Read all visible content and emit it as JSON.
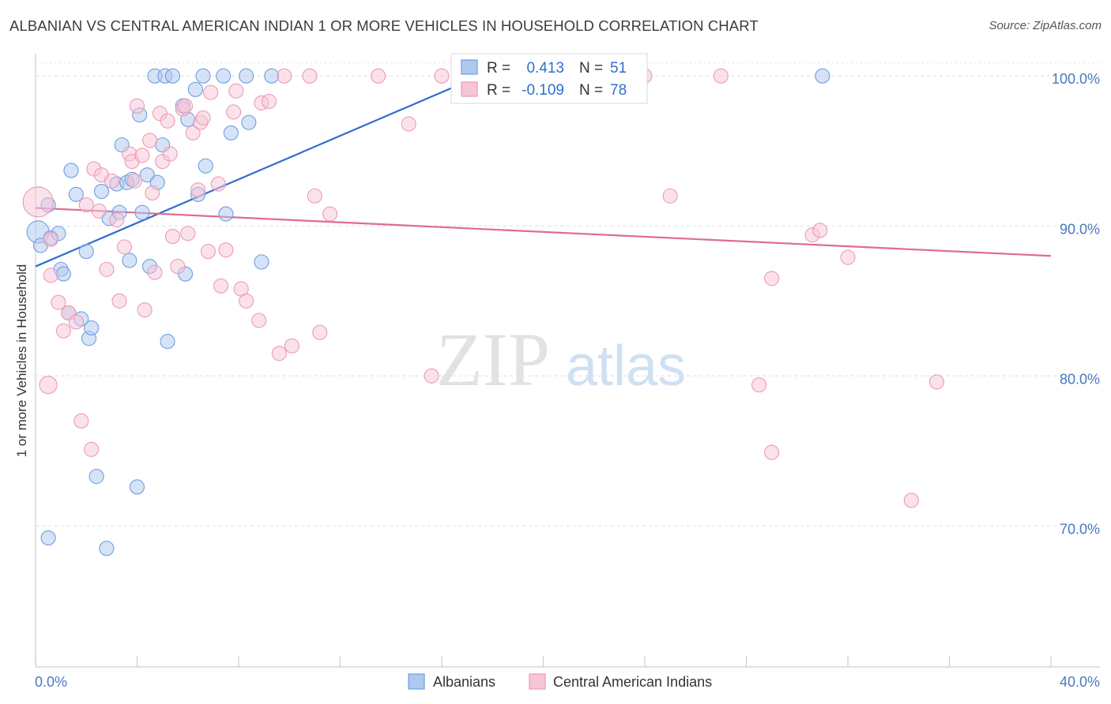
{
  "title": "ALBANIAN VS CENTRAL AMERICAN INDIAN 1 OR MORE VEHICLES IN HOUSEHOLD CORRELATION CHART",
  "source": "Source: ZipAtlas.com",
  "watermark": {
    "zip": "ZIP",
    "atlas": "atlas"
  },
  "chart_data": {
    "type": "scatter",
    "ylabel": "1 or more Vehicles in Household",
    "xlim": [
      0,
      40
    ],
    "ylim": [
      60.6,
      101.8
    ],
    "x_tick_labels": [
      {
        "value": 0,
        "label": "0.0%"
      },
      {
        "value": 40,
        "label": "40.0%"
      }
    ],
    "y_tick_labels": [
      {
        "value": 100,
        "label": "100.0%"
      },
      {
        "value": 90,
        "label": "90.0%"
      },
      {
        "value": 80,
        "label": "80.0%"
      },
      {
        "value": 70,
        "label": "70.0%"
      }
    ],
    "grid": "horizontal-dashed",
    "legend_position": "bottom-center",
    "stats_box": [
      {
        "r_label": "R =",
        "r_value": "0.413",
        "n_label": "N =",
        "n_value": "51"
      },
      {
        "r_label": "R =",
        "r_value": "-0.109",
        "n_label": "N =",
        "n_value": "78"
      }
    ],
    "series": [
      {
        "name": "Albanians",
        "color": "#6f9ee2",
        "fill": "#aec8ef",
        "line_color": "#2f6fd0",
        "trend": [
          [
            0.0,
            87.3
          ],
          [
            17.5,
            100.0
          ]
        ],
        "points": [
          [
            0.1,
            89.6,
            14
          ],
          [
            0.2,
            88.7,
            9
          ],
          [
            0.5,
            91.4,
            9
          ],
          [
            0.6,
            89.2,
            9
          ],
          [
            0.9,
            89.5,
            9
          ],
          [
            1.0,
            87.1,
            9
          ],
          [
            1.1,
            86.8,
            9
          ],
          [
            1.3,
            84.2,
            9
          ],
          [
            1.4,
            93.7,
            9
          ],
          [
            1.6,
            92.1,
            9
          ],
          [
            1.8,
            83.8,
            9
          ],
          [
            2.0,
            88.3,
            9
          ],
          [
            2.1,
            82.5,
            9
          ],
          [
            2.2,
            83.2,
            9
          ],
          [
            2.4,
            73.3,
            9
          ],
          [
            2.6,
            92.3,
            9
          ],
          [
            2.8,
            68.5,
            9
          ],
          [
            2.9,
            90.5,
            9
          ],
          [
            3.2,
            92.8,
            9
          ],
          [
            3.3,
            90.9,
            9
          ],
          [
            3.4,
            95.4,
            9
          ],
          [
            3.6,
            92.9,
            9
          ],
          [
            3.7,
            87.7,
            9
          ],
          [
            3.8,
            93.1,
            9
          ],
          [
            4.0,
            72.6,
            9
          ],
          [
            4.1,
            97.4,
            9
          ],
          [
            4.2,
            90.9,
            9
          ],
          [
            4.4,
            93.4,
            9
          ],
          [
            4.5,
            87.3,
            9
          ],
          [
            4.7,
            100.0,
            9
          ],
          [
            4.8,
            92.9,
            9
          ],
          [
            5.0,
            95.4,
            9
          ],
          [
            5.1,
            100.0,
            9
          ],
          [
            5.2,
            82.3,
            9
          ],
          [
            5.4,
            100.0,
            9
          ],
          [
            5.8,
            98.0,
            9
          ],
          [
            5.9,
            86.8,
            9
          ],
          [
            6.0,
            97.1,
            9
          ],
          [
            6.3,
            99.1,
            9
          ],
          [
            6.4,
            92.1,
            9
          ],
          [
            6.6,
            100.0,
            9
          ],
          [
            6.7,
            94.0,
            9
          ],
          [
            7.4,
            100.0,
            9
          ],
          [
            7.5,
            90.8,
            9
          ],
          [
            7.7,
            96.2,
            9
          ],
          [
            8.3,
            100.0,
            9
          ],
          [
            8.4,
            96.9,
            9
          ],
          [
            8.9,
            87.6,
            9
          ],
          [
            9.3,
            100.0,
            9
          ],
          [
            31.0,
            100.0,
            9
          ],
          [
            0.5,
            69.2,
            9
          ]
        ]
      },
      {
        "name": "Central American Indians",
        "color": "#ec9ab5",
        "fill": "#f7c5d5",
        "line_color": "#e06a95",
        "trend": [
          [
            0.0,
            91.2
          ],
          [
            40.0,
            88.0
          ]
        ],
        "points": [
          [
            0.1,
            91.6,
            19
          ],
          [
            0.6,
            89.1,
            9
          ],
          [
            0.6,
            86.7,
            9
          ],
          [
            0.9,
            84.9,
            9
          ],
          [
            1.1,
            83.0,
            9
          ],
          [
            1.3,
            84.2,
            9
          ],
          [
            0.5,
            79.4,
            11
          ],
          [
            1.6,
            83.6,
            9
          ],
          [
            1.8,
            77.0,
            9
          ],
          [
            2.0,
            91.4,
            9
          ],
          [
            2.2,
            75.1,
            9
          ],
          [
            2.3,
            93.8,
            9
          ],
          [
            2.5,
            91.0,
            9
          ],
          [
            2.6,
            93.4,
            9
          ],
          [
            2.8,
            87.1,
            9
          ],
          [
            3.0,
            93.0,
            9
          ],
          [
            3.2,
            90.4,
            9
          ],
          [
            3.3,
            85.0,
            9
          ],
          [
            3.5,
            88.6,
            9
          ],
          [
            3.7,
            94.8,
            9
          ],
          [
            3.8,
            94.3,
            9
          ],
          [
            3.9,
            93.0,
            9
          ],
          [
            4.0,
            98.0,
            9
          ],
          [
            4.2,
            94.7,
            9
          ],
          [
            4.3,
            84.4,
            9
          ],
          [
            4.5,
            95.7,
            9
          ],
          [
            4.6,
            92.2,
            9
          ],
          [
            4.7,
            86.9,
            9
          ],
          [
            4.9,
            97.5,
            9
          ],
          [
            5.0,
            94.3,
            9
          ],
          [
            5.2,
            97.0,
            9
          ],
          [
            5.3,
            94.8,
            9
          ],
          [
            5.4,
            89.3,
            9
          ],
          [
            5.6,
            87.3,
            9
          ],
          [
            5.8,
            97.8,
            9
          ],
          [
            5.9,
            98.0,
            9
          ],
          [
            6.0,
            89.5,
            9
          ],
          [
            6.2,
            96.2,
            9
          ],
          [
            6.4,
            92.4,
            9
          ],
          [
            6.5,
            96.9,
            9
          ],
          [
            6.6,
            97.2,
            9
          ],
          [
            6.8,
            88.3,
            9
          ],
          [
            6.9,
            98.9,
            9
          ],
          [
            7.2,
            92.8,
            9
          ],
          [
            7.3,
            86.0,
            9
          ],
          [
            7.5,
            88.4,
            9
          ],
          [
            7.8,
            97.6,
            9
          ],
          [
            7.9,
            99.0,
            9
          ],
          [
            8.1,
            85.8,
            9
          ],
          [
            8.3,
            85.0,
            9
          ],
          [
            8.8,
            83.7,
            9
          ],
          [
            8.9,
            98.2,
            9
          ],
          [
            9.2,
            98.3,
            9
          ],
          [
            9.6,
            81.5,
            9
          ],
          [
            9.8,
            100.0,
            9
          ],
          [
            10.1,
            82.0,
            9
          ],
          [
            10.8,
            100.0,
            9
          ],
          [
            11.0,
            92.0,
            9
          ],
          [
            11.2,
            82.9,
            9
          ],
          [
            11.6,
            90.8,
            9
          ],
          [
            13.5,
            100.0,
            9
          ],
          [
            14.7,
            96.8,
            9
          ],
          [
            15.6,
            80.0,
            9
          ],
          [
            16.0,
            100.0,
            9
          ],
          [
            18.0,
            100.0,
            9
          ],
          [
            21.0,
            100.0,
            9
          ],
          [
            23.0,
            100.0,
            9
          ],
          [
            24.0,
            100.0,
            9
          ],
          [
            25.0,
            92.0,
            9
          ],
          [
            27.0,
            100.0,
            9
          ],
          [
            28.5,
            79.4,
            9
          ],
          [
            29.0,
            74.9,
            9
          ],
          [
            29.0,
            86.5,
            9
          ],
          [
            30.6,
            89.4,
            9
          ],
          [
            30.9,
            89.7,
            9
          ],
          [
            32.0,
            87.9,
            9
          ],
          [
            34.5,
            71.7,
            9
          ],
          [
            35.5,
            79.6,
            9
          ]
        ]
      }
    ]
  }
}
